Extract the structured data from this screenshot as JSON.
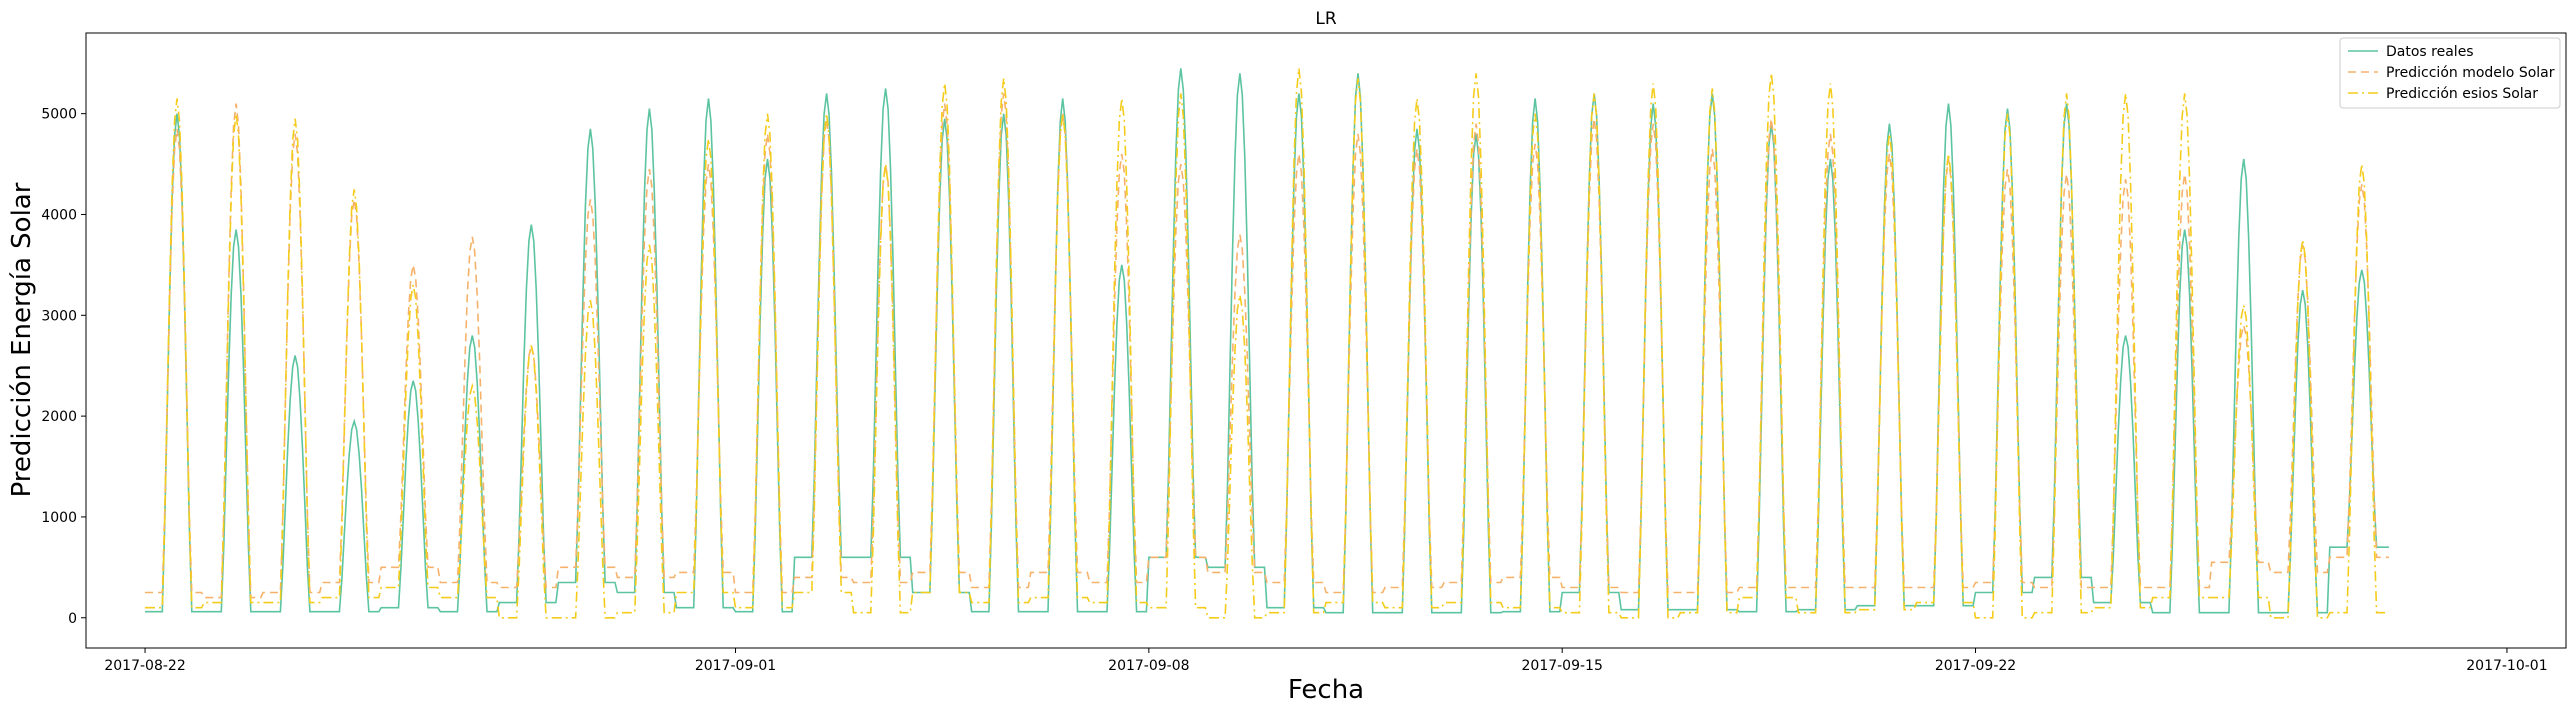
{
  "chart_data": {
    "type": "line",
    "title": "LR",
    "xlabel": "Fecha",
    "ylabel": "Predicción Energía Solar",
    "x_start": "2017-08-22",
    "x_end": "2017-09-29",
    "xlim": [
      "2017-08-21",
      "2017-10-02"
    ],
    "ylim": [
      -300,
      5800
    ],
    "x_ticks": [
      "2017-08-22",
      "2017-09-01",
      "2017-09-08",
      "2017-09-15",
      "2017-09-22",
      "2017-10-01"
    ],
    "y_ticks": [
      0,
      1000,
      2000,
      3000,
      4000,
      5000
    ],
    "grid": false,
    "legend_position": "top-right",
    "series": [
      {
        "name": "Datos reales",
        "color": "#5cc4a0",
        "style": "solid",
        "peaks": [
          5000,
          3850,
          2600,
          1950,
          2350,
          2800,
          3900,
          4850,
          5050,
          5150,
          4550,
          5200,
          5250,
          4950,
          5000,
          5150,
          3500,
          5450,
          5400,
          5200,
          5400,
          4850,
          4800,
          5150,
          5200,
          5100,
          5200,
          4900,
          4550,
          4900,
          5100,
          5050,
          5100,
          2800,
          3850,
          4550,
          3250,
          3450
        ],
        "troughs": [
          60,
          60,
          60,
          60,
          100,
          60,
          150,
          350,
          250,
          100,
          60,
          600,
          600,
          250,
          60,
          60,
          60,
          600,
          500,
          100,
          50,
          50,
          50,
          60,
          250,
          80,
          80,
          60,
          80,
          120,
          120,
          250,
          400,
          150,
          50,
          50,
          50,
          700
        ]
      },
      {
        "name": "Predicción modelo Solar",
        "color": "#f6b26b",
        "style": "dashed",
        "peaks": [
          4850,
          5100,
          4800,
          4150,
          3500,
          3780,
          2700,
          4150,
          4450,
          4500,
          4800,
          4950,
          4500,
          5100,
          5200,
          5000,
          4600,
          4500,
          3800,
          4600,
          4800,
          4650,
          4900,
          4700,
          4950,
          4900,
          4650,
          4950,
          4800,
          4600,
          4550,
          4450,
          4400,
          4350,
          4400,
          2900,
          3700,
          4300
        ],
        "troughs": [
          250,
          200,
          250,
          350,
          500,
          350,
          300,
          500,
          400,
          450,
          250,
          400,
          350,
          450,
          300,
          450,
          350,
          600,
          450,
          350,
          250,
          300,
          350,
          400,
          300,
          250,
          250,
          300,
          300,
          300,
          300,
          350,
          300,
          300,
          300,
          550,
          450,
          600
        ]
      },
      {
        "name": "Predicción esios Solar",
        "color": "#f4cc1c",
        "style": "dashdot",
        "peaks": [
          5150,
          5000,
          4950,
          4250,
          3300,
          2300,
          2700,
          3150,
          3700,
          4750,
          5000,
          5000,
          4500,
          5300,
          5350,
          5000,
          5150,
          5200,
          3200,
          5450,
          5350,
          5150,
          5400,
          5000,
          5200,
          5300,
          5250,
          5400,
          5300,
          4800,
          4600,
          5000,
          5200,
          5200,
          5200,
          3100,
          3750,
          4500
        ],
        "troughs": [
          100,
          150,
          150,
          200,
          300,
          200,
          0,
          0,
          50,
          250,
          100,
          250,
          50,
          250,
          150,
          200,
          150,
          100,
          0,
          50,
          150,
          100,
          150,
          100,
          50,
          0,
          50,
          200,
          50,
          80,
          150,
          0,
          50,
          100,
          200,
          200,
          0,
          50
        ]
      }
    ]
  }
}
